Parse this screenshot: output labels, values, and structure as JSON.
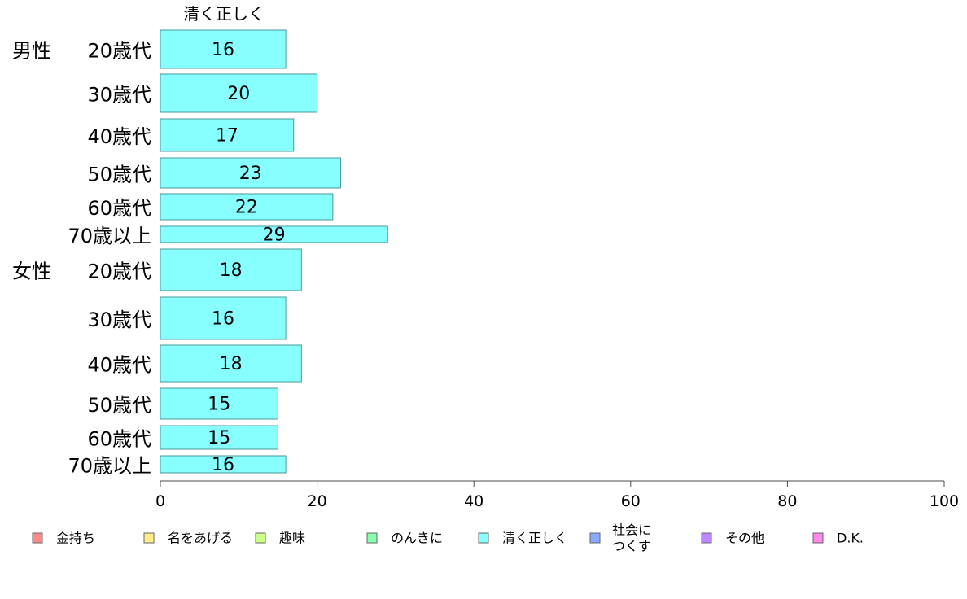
{
  "chart_data": {
    "type": "bar",
    "orientation": "horizontal",
    "series_header": "清く正しく",
    "groups": [
      {
        "label": "男性",
        "rows": [
          {
            "label": "20歳代",
            "value": 16
          },
          {
            "label": "30歳代",
            "value": 20
          },
          {
            "label": "40歳代",
            "value": 17
          },
          {
            "label": "50歳代",
            "value": 23
          },
          {
            "label": "60歳代",
            "value": 22
          },
          {
            "label": "70歳以上",
            "value": 29
          }
        ]
      },
      {
        "label": "女性",
        "rows": [
          {
            "label": "20歳代",
            "value": 18
          },
          {
            "label": "30歳代",
            "value": 16
          },
          {
            "label": "40歳代",
            "value": 18
          },
          {
            "label": "50歳代",
            "value": 15
          },
          {
            "label": "60歳代",
            "value": 15
          },
          {
            "label": "70歳以上",
            "value": 16
          }
        ]
      }
    ],
    "xlim": [
      0,
      100
    ],
    "xticks": [
      0,
      20,
      40,
      60,
      80,
      100
    ],
    "bar_color": "#88ffff",
    "legend": [
      {
        "label": "金持ち",
        "color": "#ff8888"
      },
      {
        "label": "名をあげる",
        "color": "#ffee88"
      },
      {
        "label": "趣味",
        "color": "#ccff88"
      },
      {
        "label": "のんきに",
        "color": "#88ffaa"
      },
      {
        "label": "清く正しく",
        "color": "#88ffff"
      },
      {
        "label": "社会に つくす",
        "color": "#88aaff"
      },
      {
        "label": "その他",
        "color": "#bb88ff"
      },
      {
        "label": "D.K.",
        "color": "#ff88ee"
      }
    ],
    "legend_position": "bottom",
    "grid": false
  }
}
